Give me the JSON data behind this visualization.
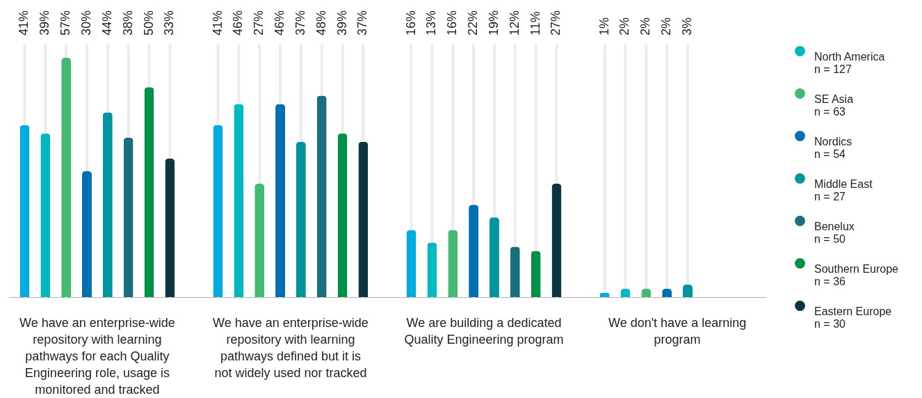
{
  "chart_data": {
    "type": "bar",
    "categories": [
      "We have an enterprise-wide repository with learning pathways for each Quality Engineering role, usage is monitored and tracked",
      "We have an enterprise-wide repository with learning pathways defined but it is not widely used nor tracked",
      "We are building a dedicated Quality Engineering program",
      "We don't have a learning program"
    ],
    "series": [
      {
        "color": "#00abe1",
        "values": [
          41,
          41,
          16,
          1
        ],
        "value_labels": [
          "41%",
          "41%",
          "16%",
          "1%"
        ]
      },
      {
        "name": "North America\nn = 127",
        "color": "#00b8bf",
        "values": [
          39,
          46,
          13,
          2
        ],
        "value_labels": [
          "39%",
          "46%",
          "13%",
          "2%"
        ]
      },
      {
        "name": "SE Asia\nn = 63",
        "color": "#44b972",
        "values": [
          57,
          27,
          16,
          2
        ],
        "value_labels": [
          "57%",
          "27%",
          "16%",
          "2%"
        ]
      },
      {
        "name": "Nordics\nn = 54",
        "color": "#0070b3",
        "values": [
          30,
          46,
          22,
          2
        ],
        "value_labels": [
          "30%",
          "46%",
          "22%",
          "2%"
        ]
      },
      {
        "name": "Middle East\nn = 27",
        "color": "#00959c",
        "values": [
          44,
          37,
          19,
          3
        ],
        "value_labels": [
          "44%",
          "37%",
          "19%",
          "3%"
        ]
      },
      {
        "name": "Benelux\nn = 50",
        "color": "#1a6e7e",
        "values": [
          38,
          48,
          12,
          null
        ],
        "value_labels": [
          "38%",
          "48%",
          "12%",
          null
        ]
      },
      {
        "name": "Southern Europe\nn = 36",
        "color": "#009048",
        "values": [
          50,
          39,
          11,
          null
        ],
        "value_labels": [
          "50%",
          "39%",
          "11%",
          null
        ]
      },
      {
        "name": "Eastern Europe\nn = 30",
        "color": "#0b3540",
        "values": [
          33,
          37,
          27,
          null
        ],
        "value_labels": [
          "33%",
          "37%",
          "27%",
          null
        ]
      }
    ],
    "tick_labels": "x",
    "legend": "right"
  }
}
